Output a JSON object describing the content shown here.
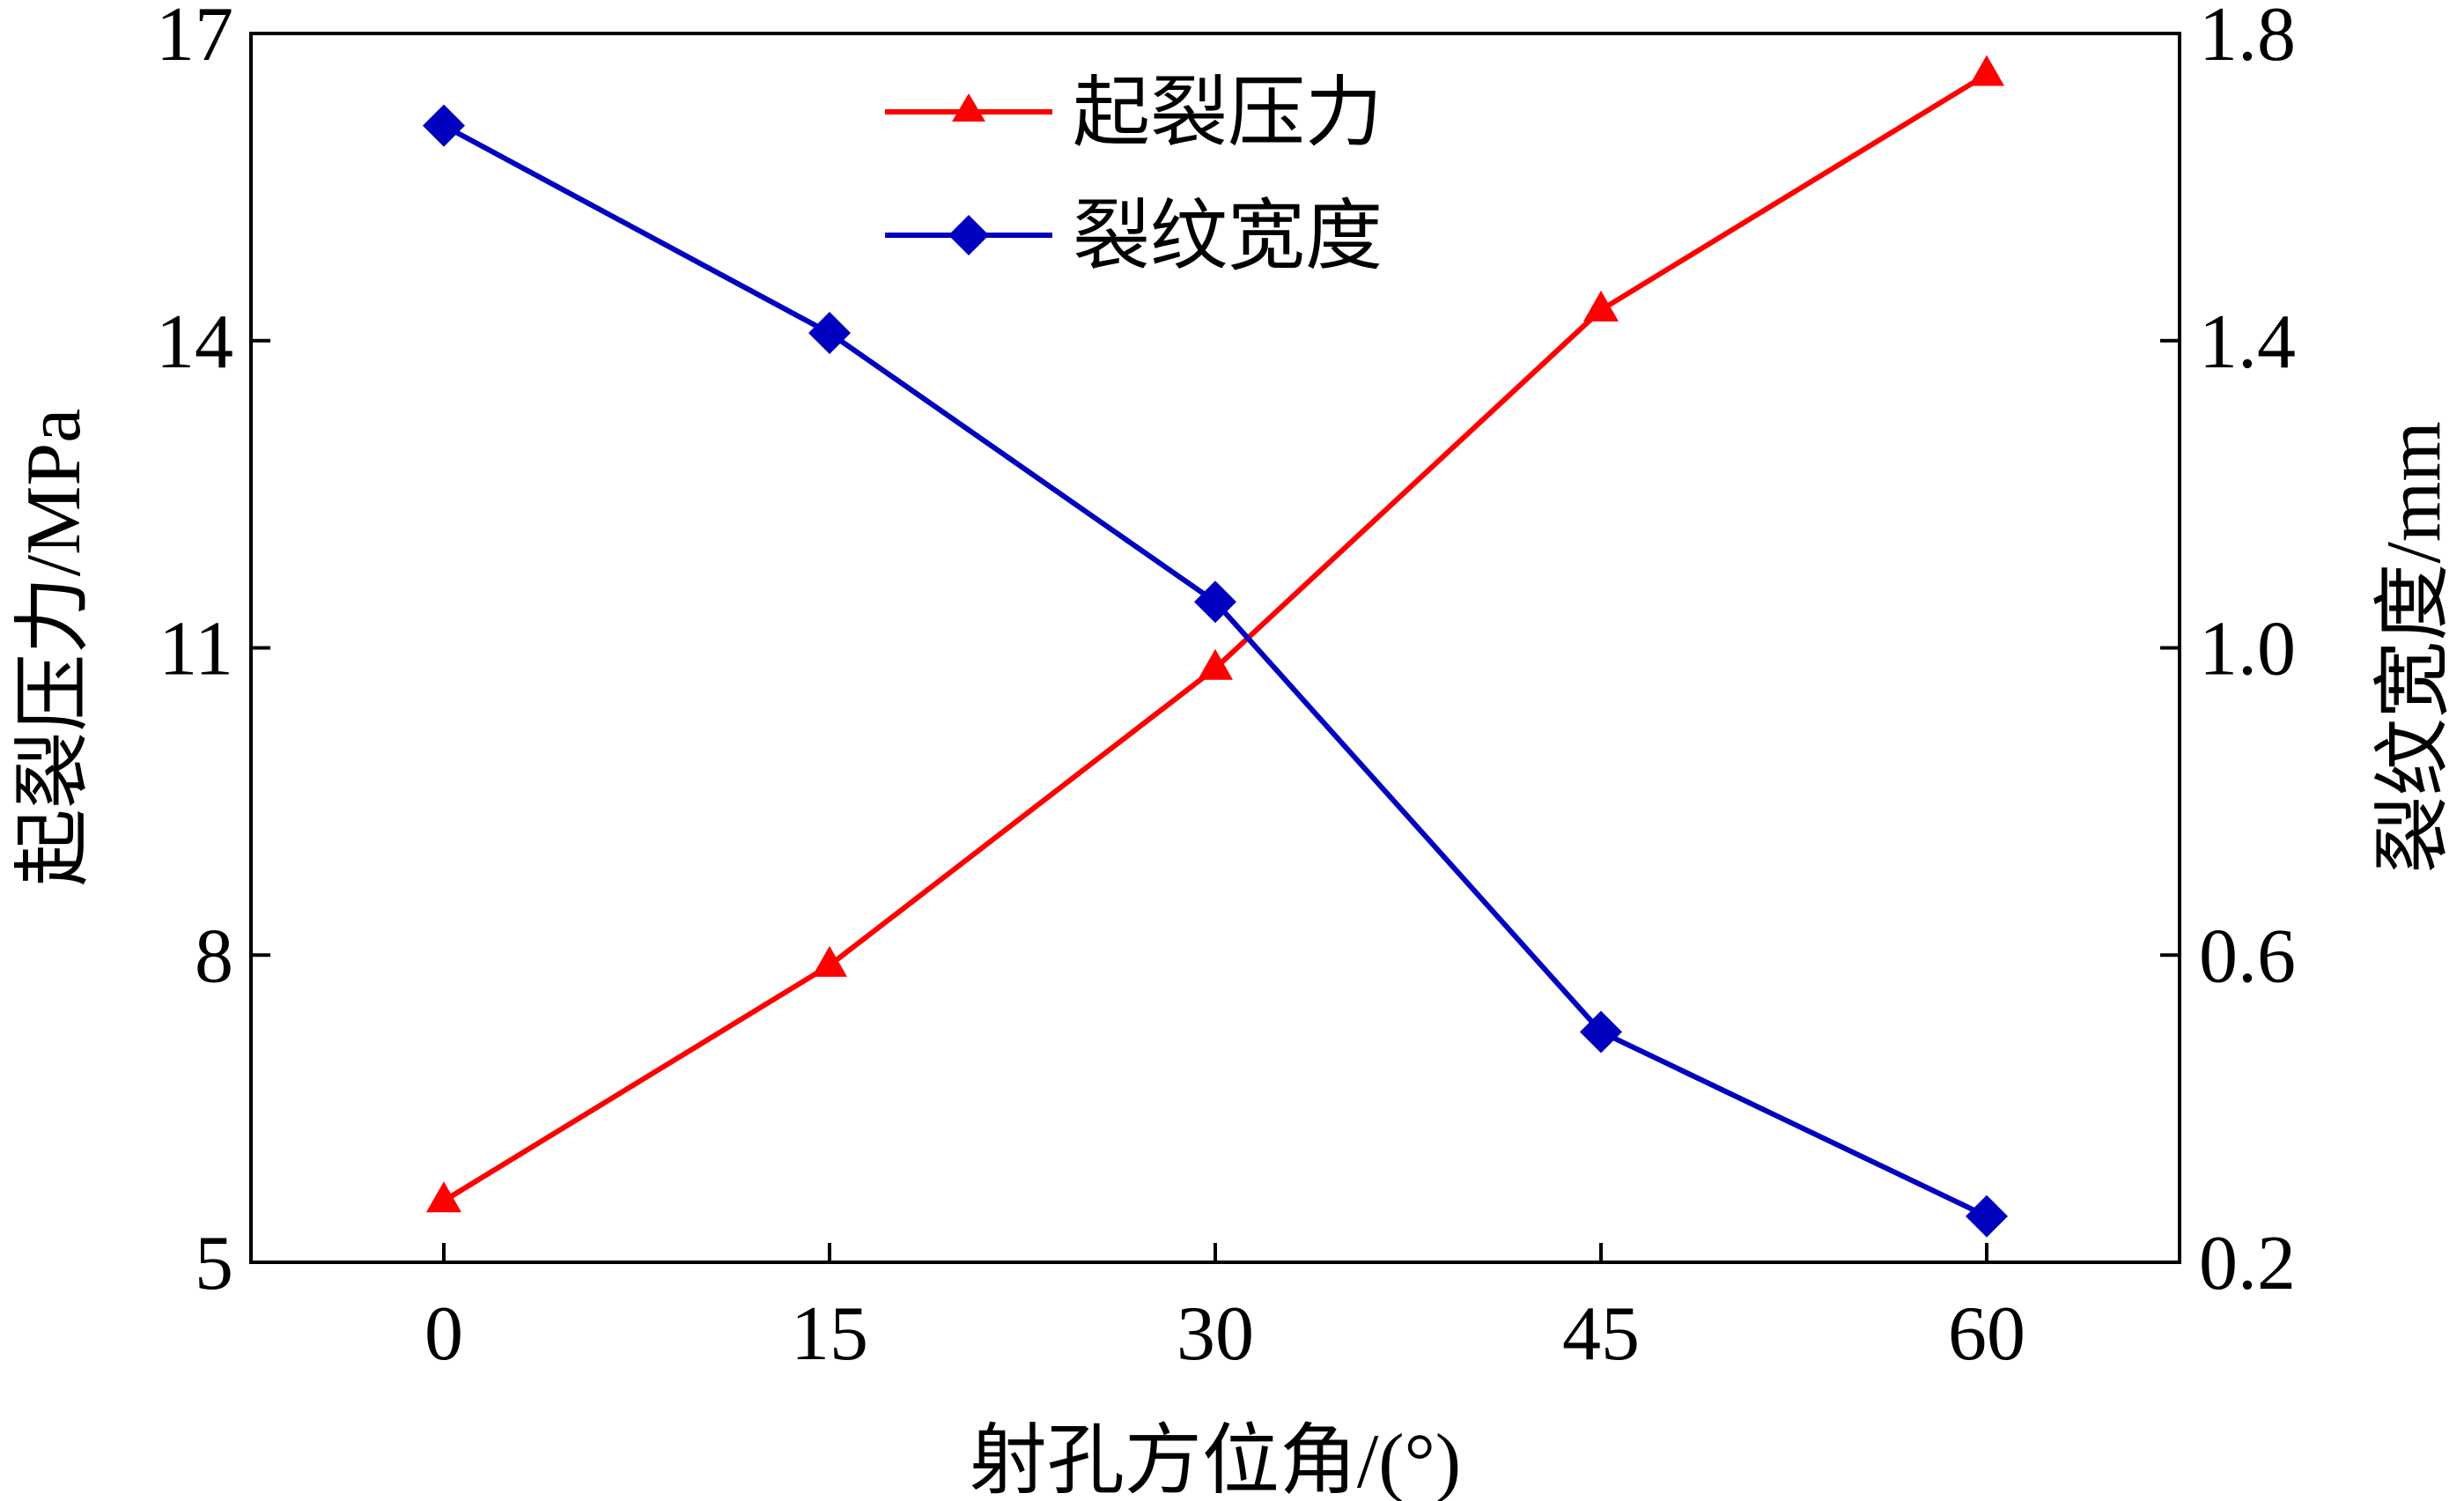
{
  "chart_data": {
    "type": "line",
    "title": "",
    "x": [
      0,
      15,
      30,
      45,
      60
    ],
    "xlabel": "射孔方位角/(°)",
    "xticks": [
      "0",
      "15",
      "30",
      "45",
      "60"
    ],
    "xlim": [
      -7.5,
      67.5
    ],
    "y_left": {
      "label": "起裂压力/MPa",
      "lim": [
        5,
        17
      ],
      "ticks": [
        "5",
        "8",
        "11",
        "14",
        "17"
      ]
    },
    "y_right": {
      "label": "裂纹宽度/mm",
      "lim": [
        0.2,
        1.8
      ],
      "ticks": [
        "0.2",
        "0.6",
        "1.0",
        "1.4",
        "1.8"
      ]
    },
    "series": [
      {
        "name": "起裂压力",
        "axis": "left",
        "color": "#ff0000",
        "marker": "triangle",
        "values": [
          5.6,
          7.9,
          10.8,
          14.3,
          16.6
        ]
      },
      {
        "name": "裂纹宽度",
        "axis": "right",
        "color": "#0000bf",
        "marker": "diamond",
        "values": [
          1.68,
          1.41,
          1.06,
          0.5,
          0.26
        ]
      }
    ],
    "legend_position": "top-center",
    "grid": false
  }
}
